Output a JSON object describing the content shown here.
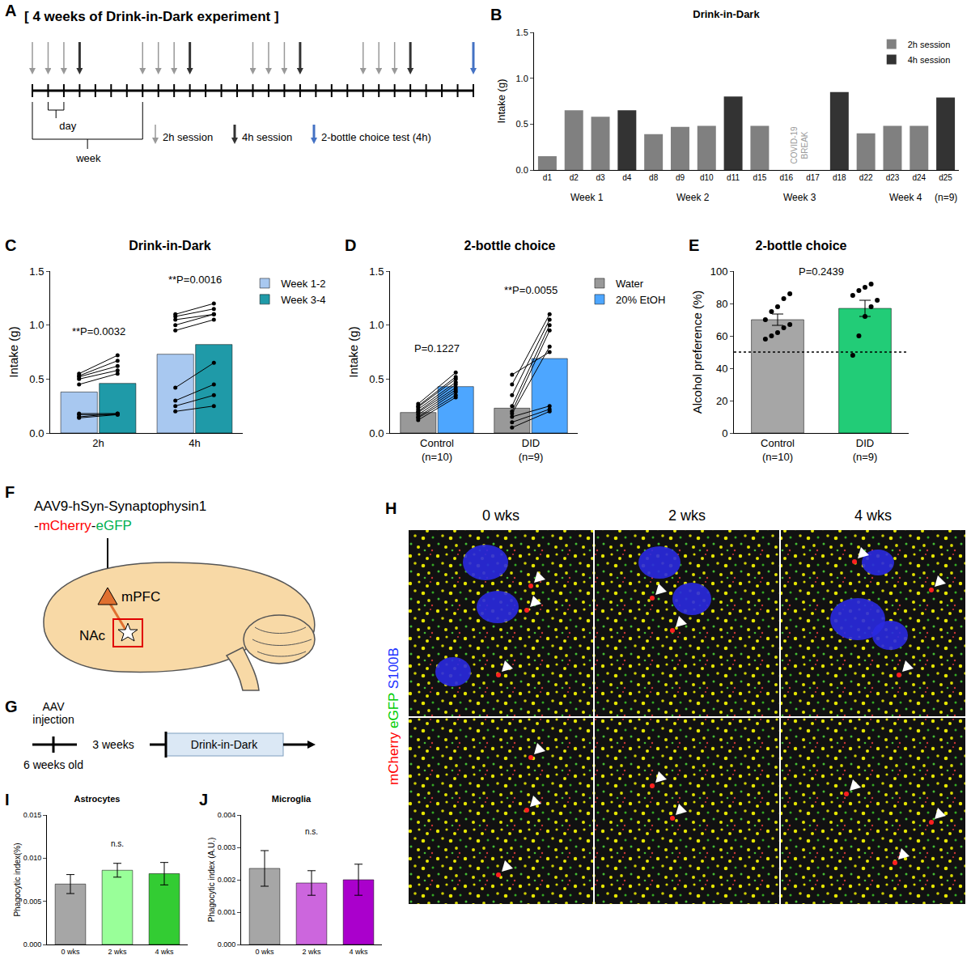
{
  "panels": {
    "A": {
      "letter": "A",
      "title": "[ 4 weeks of Drink-in-Dark experiment ]",
      "days": 28,
      "sessions": [
        {
          "day": 0,
          "type": "2h"
        },
        {
          "day": 1,
          "type": "2h"
        },
        {
          "day": 2,
          "type": "2h"
        },
        {
          "day": 3,
          "type": "4h"
        },
        {
          "day": 7,
          "type": "2h"
        },
        {
          "day": 8,
          "type": "2h"
        },
        {
          "day": 9,
          "type": "2h"
        },
        {
          "day": 10,
          "type": "4h"
        },
        {
          "day": 14,
          "type": "2h"
        },
        {
          "day": 15,
          "type": "2h"
        },
        {
          "day": 16,
          "type": "2h"
        },
        {
          "day": 17,
          "type": "4h"
        },
        {
          "day": 21,
          "type": "2h"
        },
        {
          "day": 22,
          "type": "2h"
        },
        {
          "day": 23,
          "type": "2h"
        },
        {
          "day": 24,
          "type": "4h"
        },
        {
          "day": 28,
          "type": "test"
        }
      ],
      "legend": [
        {
          "type": "2h",
          "label": "2h session",
          "color": "#999999"
        },
        {
          "type": "4h",
          "label": "4h session",
          "color": "#333333"
        },
        {
          "type": "test",
          "label": "2-bottle choice test (4h)",
          "color": "#4472c4"
        }
      ],
      "day_label": "day",
      "week_label": "week"
    },
    "F": {
      "letter": "F",
      "vector_lines": [
        [
          {
            "text": "AAV9-hSyn-Synaptophysin1"
          }
        ],
        [
          {
            "text": "-"
          },
          {
            "text": "mCherry",
            "color": "#ff0000"
          },
          {
            "text": "-"
          },
          {
            "text": "eGFP",
            "color": "#00b050"
          }
        ]
      ],
      "source": "mPFC",
      "target": "NAc"
    },
    "G": {
      "letter": "G",
      "start_label": "AAV injection",
      "age": "6 weeks old",
      "interval": "3 weeks",
      "phase": "Drink-in-Dark"
    },
    "H": {
      "letter": "H",
      "column_titles": [
        "0 wks",
        "2 wks",
        "4 wks"
      ],
      "channels": [
        {
          "text": "mCherry",
          "color": "#ff0000"
        },
        {
          "text": "eGFP",
          "color": "#00cc00"
        },
        {
          "text": "S100B",
          "color": "#2233ff"
        }
      ]
    }
  },
  "chart_data": [
    {
      "letter": "B",
      "type": "bar",
      "title": "Drink-in-Dark",
      "y_label": "Intake (g)",
      "categories": [
        "d1",
        "d2",
        "d3",
        "d4",
        "d8",
        "d9",
        "d10",
        "d11",
        "d15",
        "d16",
        "d17",
        "d18",
        "d22",
        "d23",
        "d24",
        "d25"
      ],
      "series": [
        {
          "name": "2h session",
          "color": "#808080",
          "values": [
            0.15,
            0.65,
            0.58,
            null,
            0.39,
            0.47,
            0.48,
            null,
            0.48,
            null,
            null,
            null,
            0.4,
            0.48,
            0.48,
            null
          ]
        },
        {
          "name": "4h session",
          "color": "#333333",
          "values": [
            null,
            null,
            null,
            0.65,
            null,
            null,
            null,
            0.8,
            null,
            null,
            null,
            0.85,
            null,
            null,
            null,
            0.79
          ]
        }
      ],
      "ylim": [
        0,
        1.5
      ],
      "yticks": [
        {
          "value": 0,
          "label": "0.0"
        },
        0.5,
        {
          "value": 1,
          "label": "1.0"
        },
        1.5
      ],
      "legend": "top right",
      "groups": [
        {
          "label": "Week 1",
          "categories": [
            "d1",
            "d2",
            "d3",
            "d4"
          ]
        },
        {
          "label": "Week 2",
          "categories": [
            "d8",
            "d9",
            "d10",
            "d11"
          ]
        },
        {
          "label": "Week 3",
          "categories": [
            "d15",
            "d16",
            "d17",
            "d18"
          ]
        },
        {
          "label": "Week 4",
          "categories": [
            "d22",
            "d23",
            "d24",
            "d25"
          ]
        }
      ],
      "annotations": [
        {
          "text": "COVID-19 BREAK",
          "categories": [
            "d16",
            "d17"
          ]
        },
        {
          "text": "(n=9)"
        }
      ]
    },
    {
      "letter": "C",
      "type": "bar",
      "title": "Drink-in-Dark",
      "y_label": "Intake (g)",
      "categories": [
        "2h",
        "4h"
      ],
      "series": [
        {
          "name": "Week 1-2",
          "color": "#a8c8f0",
          "values": [
            0.38,
            0.73
          ],
          "points": [
            [
              0.14,
              0.15,
              0.17,
              0.18,
              0.45,
              0.5,
              0.52,
              0.53,
              0.55
            ],
            [
              0.2,
              0.25,
              0.3,
              0.42,
              0.95,
              1.0,
              1.05,
              1.08,
              1.1
            ]
          ]
        },
        {
          "name": "Week 3-4",
          "color": "#1f9aa8",
          "values": [
            0.46,
            0.82
          ],
          "points": [
            [
              0.17,
              0.18,
              0.17,
              0.18,
              0.55,
              0.58,
              0.62,
              0.67,
              0.72
            ],
            [
              0.25,
              0.35,
              0.45,
              0.65,
              1.05,
              1.1,
              1.1,
              1.15,
              1.2
            ]
          ]
        }
      ],
      "ylim": [
        0,
        1.5
      ],
      "yticks": [
        {
          "value": 0,
          "label": "0.0"
        },
        0.5,
        {
          "value": 1,
          "label": "1.0"
        },
        1.5
      ],
      "legend": "right",
      "annotations": [
        {
          "text": "**P=0.0032",
          "category": "2h"
        },
        {
          "text": "**P=0.0016",
          "category": "4h"
        }
      ]
    },
    {
      "letter": "D",
      "type": "bar",
      "title": "2-bottle choice",
      "y_label": "Intake (g)",
      "categories": [
        "Control (n=10)",
        "DID (n=9)"
      ],
      "series": [
        {
          "name": "Water",
          "color": "#999999",
          "values": [
            0.19,
            0.23
          ],
          "points": [
            [
              0.12,
              0.14,
              0.15,
              0.17,
              0.19,
              0.2,
              0.22,
              0.24,
              0.25,
              0.27
            ],
            [
              0.05,
              0.1,
              0.15,
              0.18,
              0.2,
              0.25,
              0.35,
              0.45,
              0.54
            ]
          ]
        },
        {
          "name": "20% EtOH",
          "color": "#4da6ff",
          "values": [
            0.43,
            0.69
          ],
          "points": [
            [
              0.33,
              0.35,
              0.38,
              0.4,
              0.42,
              0.45,
              0.47,
              0.5,
              0.52,
              0.56
            ],
            [
              0.2,
              0.22,
              0.25,
              0.8,
              0.95,
              1.0,
              1.05,
              1.1,
              0.75
            ]
          ]
        }
      ],
      "ylim": [
        0,
        1.5
      ],
      "yticks": [
        {
          "value": 0,
          "label": "0.0"
        },
        0.5,
        {
          "value": 1,
          "label": "1.0"
        },
        1.5
      ],
      "legend": "right",
      "annotations": [
        {
          "text": "P=0.1227",
          "category": "Control (n=10)"
        },
        {
          "text": "**P=0.0055",
          "category": "DID (n=9)"
        }
      ]
    },
    {
      "letter": "E",
      "type": "bar",
      "title": "2-bottle choice",
      "y_label": "Alcohol preference (%)",
      "categories": [
        "Control (n=10)",
        "DID (n=9)"
      ],
      "values": [
        70,
        77
      ],
      "errors": [
        3.5,
        5
      ],
      "colors": [
        "#a6a6a6",
        "#22cc77"
      ],
      "points": [
        [
          58,
          60,
          62,
          65,
          67,
          70,
          75,
          78,
          83,
          86
        ],
        [
          48,
          60,
          72,
          78,
          82,
          85,
          88,
          90,
          92
        ]
      ],
      "ylim": [
        0,
        100
      ],
      "yticks": [
        0,
        20,
        40,
        60,
        80,
        100
      ],
      "reference_line": 50,
      "annotations": [
        {
          "text": "P=0.2439"
        }
      ]
    },
    {
      "letter": "I",
      "type": "bar",
      "title": "Astrocytes",
      "y_label": "Phagocytic index(%)",
      "categories": [
        "0 wks",
        "2 wks",
        "4 wks"
      ],
      "values": [
        0.007,
        0.0086,
        0.0082
      ],
      "errors": [
        0.0011,
        0.0008,
        0.0013
      ],
      "colors": [
        "#a6a6a6",
        "#99ff99",
        "#33cc33"
      ],
      "ylim": [
        0,
        0.015
      ],
      "yticks": [
        {
          "value": 0,
          "label": "0.000"
        },
        0.005,
        {
          "value": 0.01,
          "label": "0.010"
        },
        0.015
      ],
      "annotations": [
        {
          "text": "n.s."
        }
      ]
    },
    {
      "letter": "J",
      "type": "bar",
      "title": "Microglia",
      "y_label": "Phagocytic index (A.U.)",
      "categories": [
        "0 wks",
        "2 wks",
        "4 wks"
      ],
      "values": [
        0.00235,
        0.0019,
        0.002
      ],
      "errors": [
        0.00055,
        0.00038,
        0.00048
      ],
      "colors": [
        "#a6a6a6",
        "#cc66dd",
        "#aa00cc"
      ],
      "ylim": [
        0,
        0.004
      ],
      "yticks": [
        {
          "value": 0,
          "label": "0.000"
        },
        0.001,
        0.002,
        0.003,
        0.004
      ],
      "annotations": [
        {
          "text": "n.s."
        }
      ]
    }
  ]
}
